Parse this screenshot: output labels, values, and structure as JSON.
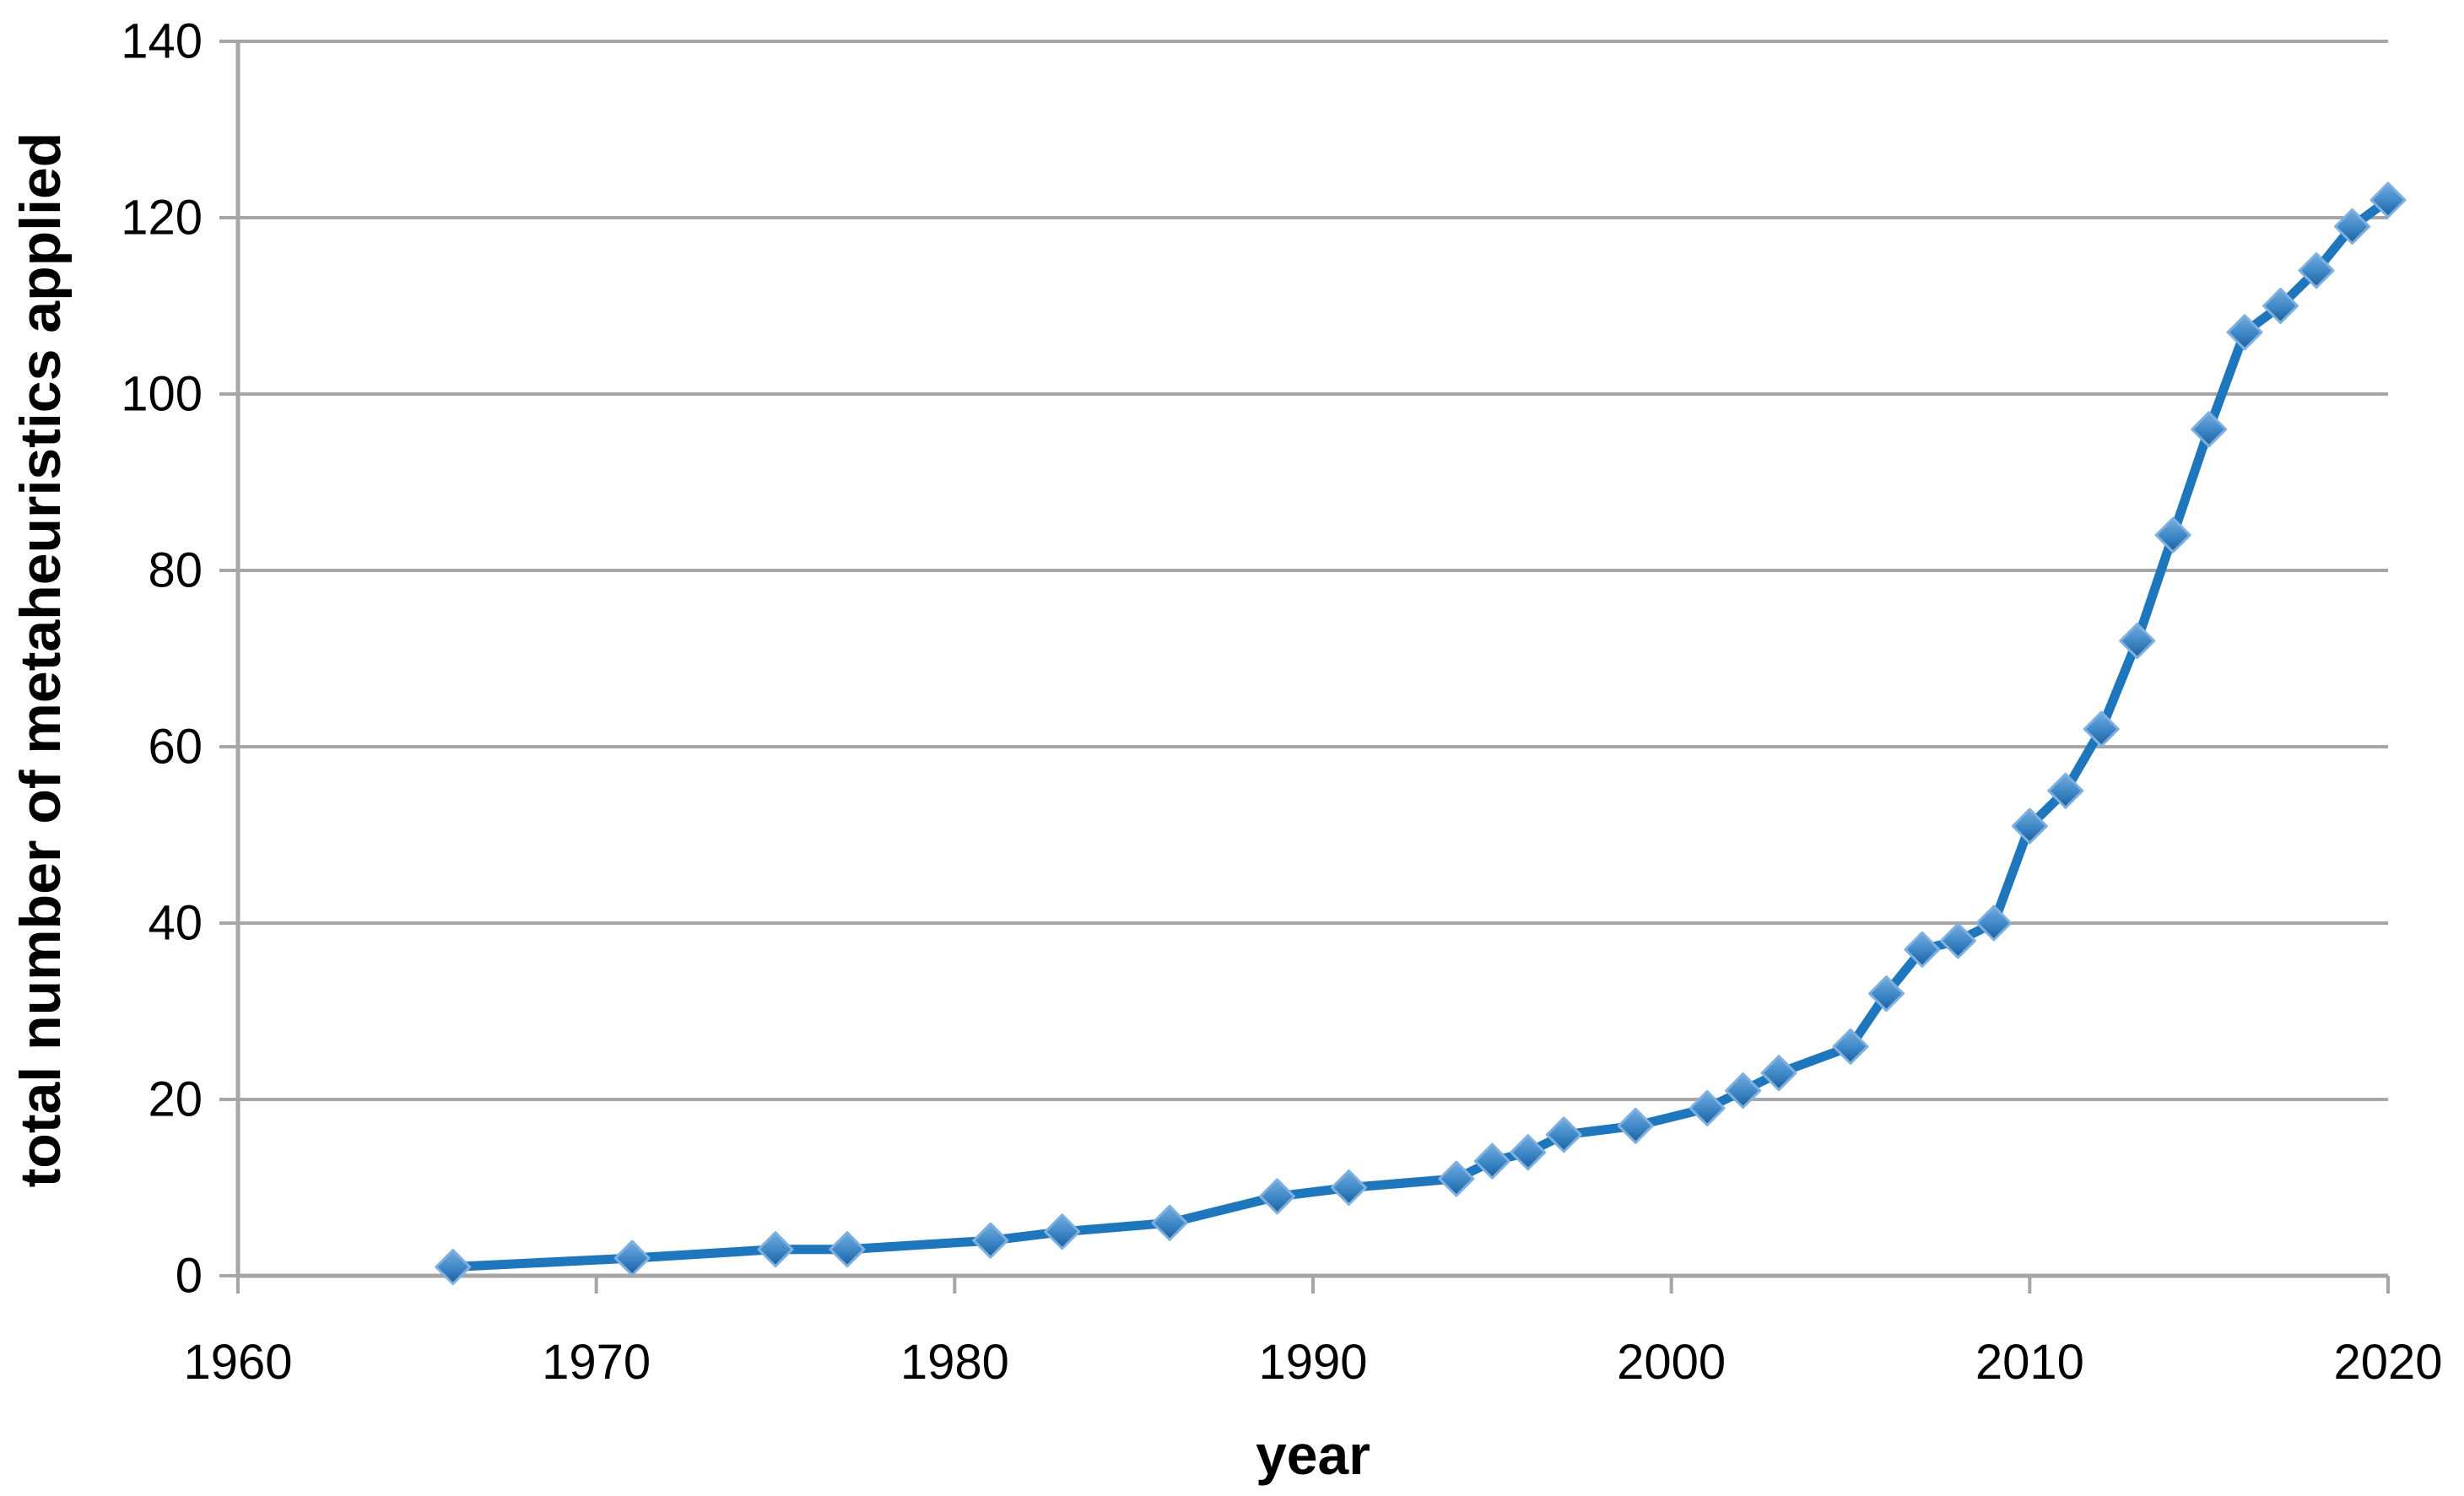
{
  "figure": {
    "background": "#ffffff"
  },
  "chart_data": {
    "type": "line",
    "title": "",
    "xlabel": "year",
    "ylabel": "total number of metaheuristics applied",
    "xlim": [
      1960,
      2020
    ],
    "ylim": [
      0,
      140
    ],
    "x_ticks": [
      "1960",
      "1970",
      "1980",
      "1990",
      "2000",
      "2010",
      "2020"
    ],
    "y_ticks": [
      "0",
      "20",
      "40",
      "60",
      "80",
      "100",
      "120",
      "140"
    ],
    "grid": "horizontal",
    "legend": "none",
    "series": [
      {
        "name": "total number of metaheuristics applied",
        "marker": "diamond",
        "points": [
          [
            1966,
            1
          ],
          [
            1971,
            2
          ],
          [
            1975,
            3
          ],
          [
            1977,
            3
          ],
          [
            1981,
            4
          ],
          [
            1983,
            5
          ],
          [
            1986,
            6
          ],
          [
            1989,
            9
          ],
          [
            1991,
            10
          ],
          [
            1994,
            11
          ],
          [
            1995,
            13
          ],
          [
            1996,
            14
          ],
          [
            1997,
            16
          ],
          [
            1999,
            17
          ],
          [
            2001,
            19
          ],
          [
            2002,
            21
          ],
          [
            2003,
            23
          ],
          [
            2005,
            26
          ],
          [
            2006,
            32
          ],
          [
            2007,
            37
          ],
          [
            2008,
            38
          ],
          [
            2009,
            40
          ],
          [
            2010,
            51
          ],
          [
            2011,
            55
          ],
          [
            2012,
            62
          ],
          [
            2013,
            72
          ],
          [
            2014,
            84
          ],
          [
            2015,
            96
          ],
          [
            2016,
            107
          ],
          [
            2017,
            110
          ],
          [
            2018,
            114
          ],
          [
            2019,
            119
          ],
          [
            2020,
            122
          ]
        ]
      }
    ],
    "colors": {
      "line": "#1e76bc",
      "marker_top": "#74acdf",
      "marker_mid": "#3c86c6",
      "marker_bottom": "#1b5e9c",
      "marker_edge": "#7fb0de",
      "grid": "#a6a6a6",
      "axis": "#a6a6a6",
      "text": "#000000"
    }
  }
}
